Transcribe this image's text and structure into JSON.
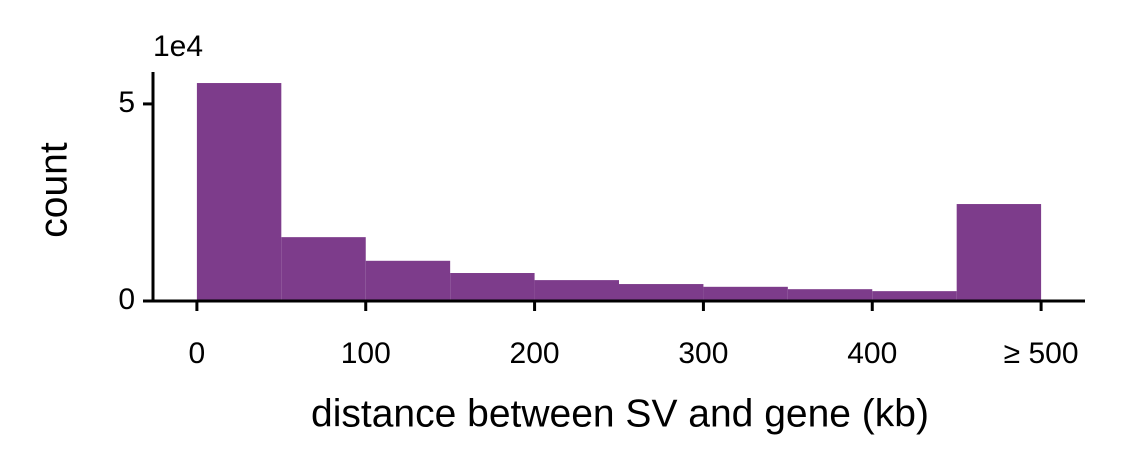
{
  "chart_data": {
    "type": "histogram",
    "x_label": "distance between SV and gene (kb)",
    "y_label": "count",
    "y_offset_label": "1e4",
    "bins": [
      0,
      50,
      100,
      150,
      200,
      250,
      300,
      350,
      400,
      450,
      500
    ],
    "counts": [
      5.53,
      1.62,
      1.02,
      0.71,
      0.53,
      0.43,
      0.36,
      0.3,
      0.25,
      2.46
    ],
    "color": "#7d3c8b",
    "xlim": [
      -26,
      526
    ],
    "ylim": [
      0,
      5.81
    ],
    "xticks": [
      0,
      100,
      200,
      300,
      400,
      {
        "value": 500,
        "label": "≥ 500"
      }
    ],
    "yticks": [
      0,
      5
    ]
  }
}
